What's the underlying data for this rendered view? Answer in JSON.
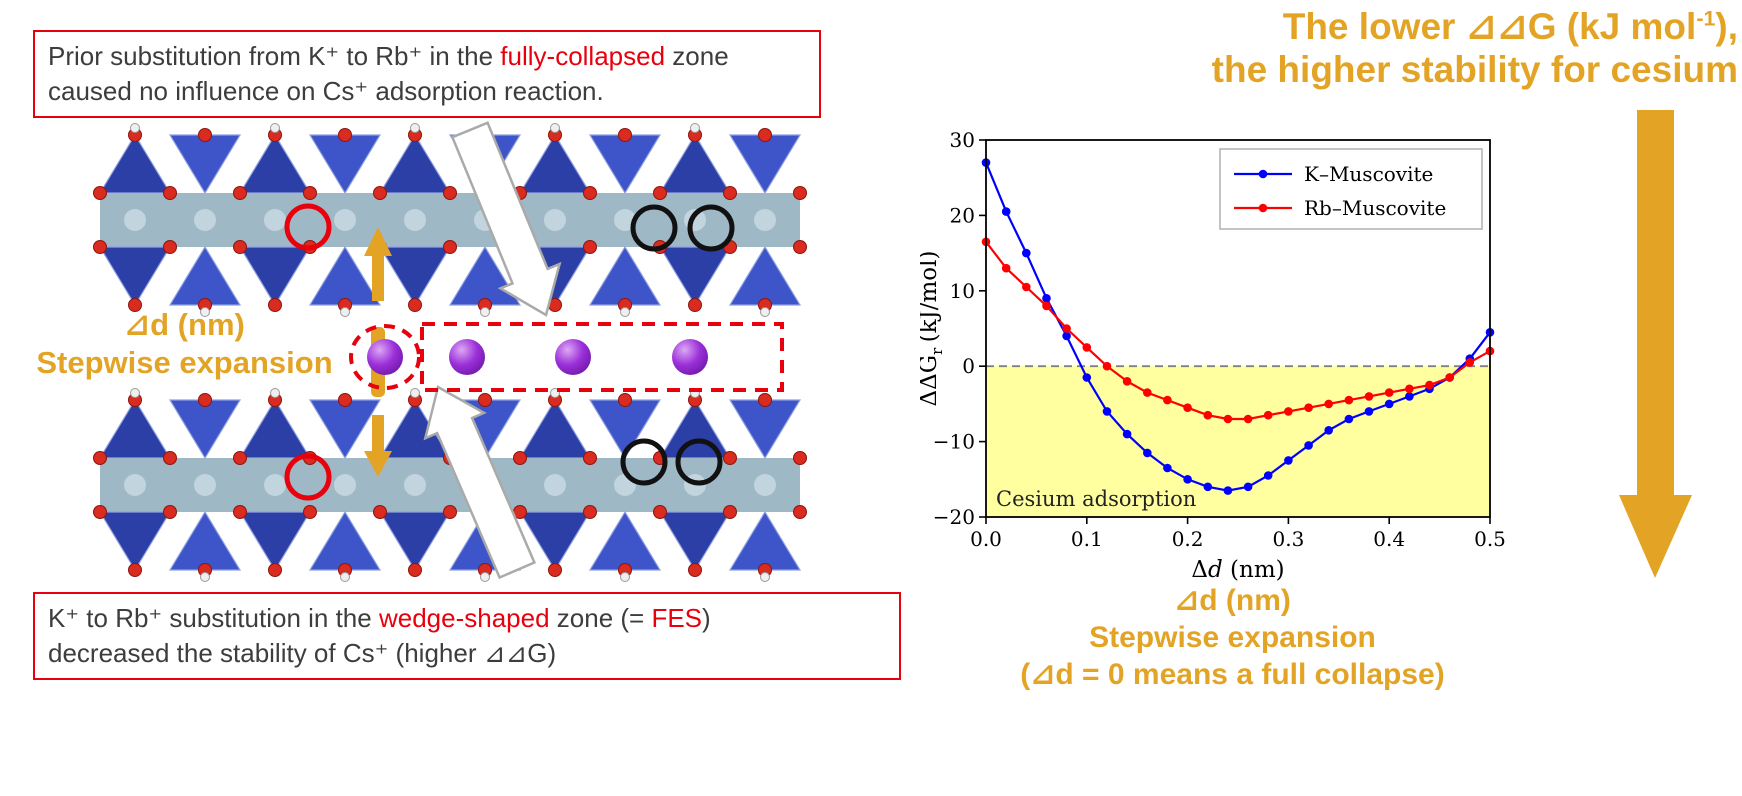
{
  "colors": {
    "accent_gold": "#E3A426",
    "annotation_red": "#E8000D",
    "text_dark": "#3D3D3D",
    "series_blue": "#0000FF",
    "series_red": "#FF0000",
    "adsorption_yellow": "#FFFFA0",
    "tetrahedra_blue_dark": "#2C3FA6",
    "tetrahedra_blue_light": "#3D55C9",
    "octahedra_gray": "#9FB8C6",
    "oxygen_red": "#D92B1F",
    "cesium_purple": "#9B30D9"
  },
  "left_panel": {
    "top_box": {
      "text_before": "Prior substitution from K⁺ to Rb⁺ in the ",
      "highlight": "fully-collapsed",
      "text_after": " zone caused no influence on Cs⁺ adsorption reaction."
    },
    "expansion_label": {
      "line1": "⊿d (nm)",
      "line2": "Stepwise expansion"
    },
    "bottom_box": {
      "text_before": "K⁺ to Rb⁺ substitution in the ",
      "highlight1": "wedge-shaped",
      "text_mid": " zone (= ",
      "highlight2": "FES",
      "text_close": ")",
      "line2": "decreased the stability of Cs⁺ (higher ⊿⊿G)"
    }
  },
  "right_panel": {
    "title": {
      "line1_pre": "The lower ⊿⊿G (kJ mol",
      "line1_sup": "-1",
      "line1_post": "),",
      "line2": "the higher stability for cesium"
    },
    "bottom_label": {
      "line1": "⊿d (nm)",
      "line2": "Stepwise expansion",
      "line3": "(⊿d = 0 means a full collapse)"
    }
  },
  "chart_data": {
    "type": "line",
    "title": "",
    "xlabel": "Δd (nm)",
    "xlabel_parts": {
      "pre": "Δ",
      "italic": "d",
      "rest": " (nm)"
    },
    "ylabel": "ΔΔG°r (kJ/mol)",
    "ylabel_parts": {
      "main": "ΔΔG",
      "sub": "r",
      "sup": "°",
      "rest": " (kJ/mol)"
    },
    "xlim": [
      0.0,
      0.5
    ],
    "ylim": [
      -20,
      30
    ],
    "xticks": [
      0.0,
      0.1,
      0.2,
      0.3,
      0.4,
      0.5
    ],
    "xtick_labels": [
      "0.0",
      "0.1",
      "0.2",
      "0.3",
      "0.4",
      "0.5"
    ],
    "yticks": [
      -20,
      -10,
      0,
      10,
      20,
      30
    ],
    "ytick_labels": [
      "−20",
      "−10",
      "0",
      "10",
      "20",
      "30"
    ],
    "grid": false,
    "legend_position": "upper right",
    "zero_line": {
      "y": 0,
      "style": "dashed",
      "color": "#808080"
    },
    "shaded_region": {
      "y_from": -20,
      "y_to": 0,
      "color": "#FFFFA0",
      "label": "Cesium adsorption"
    },
    "series": [
      {
        "name": "K–Muscovite",
        "color": "#0000FF",
        "marker": "circle",
        "x": [
          0.0,
          0.02,
          0.04,
          0.06,
          0.08,
          0.1,
          0.12,
          0.14,
          0.16,
          0.18,
          0.2,
          0.22,
          0.24,
          0.26,
          0.28,
          0.3,
          0.32,
          0.34,
          0.36,
          0.38,
          0.4,
          0.42,
          0.44,
          0.46,
          0.48,
          0.5
        ],
        "y": [
          27,
          20.5,
          15,
          9,
          4,
          -1.5,
          -6,
          -9,
          -11.5,
          -13.5,
          -15,
          -16,
          -16.5,
          -16,
          -14.5,
          -12.5,
          -10.5,
          -8.5,
          -7,
          -6,
          -5,
          -4,
          -3,
          -1.5,
          1,
          4.5
        ]
      },
      {
        "name": "Rb–Muscovite",
        "color": "#FF0000",
        "marker": "circle",
        "x": [
          0.0,
          0.02,
          0.04,
          0.06,
          0.08,
          0.1,
          0.12,
          0.14,
          0.16,
          0.18,
          0.2,
          0.22,
          0.24,
          0.26,
          0.28,
          0.3,
          0.32,
          0.34,
          0.36,
          0.38,
          0.4,
          0.42,
          0.44,
          0.46,
          0.48,
          0.5
        ],
        "y": [
          16.5,
          13,
          10.5,
          8,
          5,
          2.5,
          0,
          -2,
          -3.5,
          -4.5,
          -5.5,
          -6.5,
          -7,
          -7,
          -6.5,
          -6,
          -5.5,
          -5,
          -4.5,
          -4,
          -3.5,
          -3,
          -2.5,
          -1.5,
          0.5,
          2
        ]
      }
    ]
  }
}
